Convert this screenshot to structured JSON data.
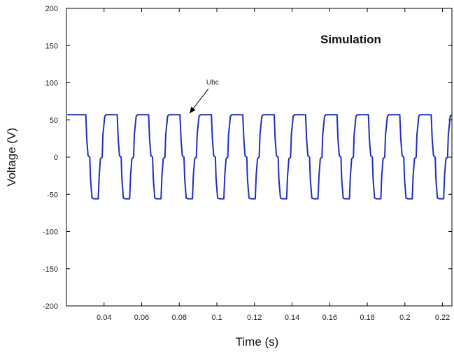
{
  "chart_data": {
    "type": "line",
    "title": "",
    "xlabel": "Time (s)",
    "ylabel": "Voltage (V)",
    "xlim": [
      0.02,
      0.225
    ],
    "ylim": [
      -200,
      200
    ],
    "x_ticks": [
      0.04,
      0.06,
      0.08,
      0.1,
      0.12,
      0.14,
      0.16,
      0.18,
      0.2,
      0.22
    ],
    "x_tick_labels": [
      "0.04",
      "0.06",
      "0.08",
      "0.1",
      "0.12",
      "0.14",
      "0.16",
      "0.18",
      "0.2",
      "0.22"
    ],
    "y_ticks": [
      -200,
      -150,
      -100,
      -50,
      0,
      50,
      100,
      150,
      200
    ],
    "y_tick_labels": [
      "-200",
      "-150",
      "-100",
      "-50",
      "0",
      "50",
      "100",
      "150",
      "200"
    ],
    "grid": false,
    "colors": {
      "series": "#1f2fbf",
      "axis": "#000000"
    },
    "annotations": {
      "title_text": "Simulation",
      "label_text": "Ubc",
      "arrow_target": {
        "x": 0.0855,
        "y": 57
      },
      "label_pos": {
        "x": 0.0955,
        "y": 92
      }
    },
    "series": [
      {
        "period": 0.0167,
        "phase_start": 0.0287,
        "waveform": [
          {
            "t": 0.0,
            "v": 57
          },
          {
            "t": 0.0016,
            "v": 57
          },
          {
            "t": 0.0021,
            "v": 25
          },
          {
            "t": 0.0028,
            "v": 2
          },
          {
            "t": 0.0037,
            "v": 0
          },
          {
            "t": 0.0041,
            "v": -30
          },
          {
            "t": 0.0049,
            "v": -55
          },
          {
            "t": 0.0058,
            "v": -56
          },
          {
            "t": 0.0082,
            "v": -56
          },
          {
            "t": 0.0087,
            "v": -25
          },
          {
            "t": 0.0094,
            "v": -2
          },
          {
            "t": 0.0103,
            "v": 0
          },
          {
            "t": 0.0107,
            "v": 30
          },
          {
            "t": 0.0117,
            "v": 55
          },
          {
            "t": 0.0124,
            "v": 57
          },
          {
            "t": 0.0167,
            "v": 57
          }
        ],
        "lead_in": [
          {
            "x": 0.0205,
            "v": 57
          },
          {
            "x": 0.0287,
            "v": 57
          }
        ]
      }
    ]
  }
}
